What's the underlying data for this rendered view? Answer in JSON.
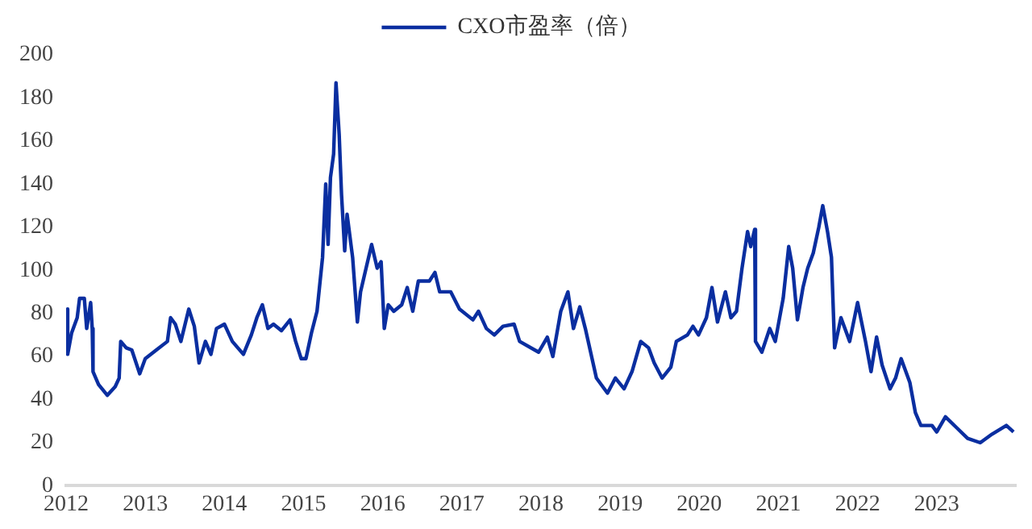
{
  "chart_data": {
    "type": "line",
    "legend": "top",
    "grid": false,
    "marker": "none",
    "line_style": "solid",
    "xlim": [
      2012,
      2024
    ],
    "xticks": [
      2012,
      2013,
      2014,
      2015,
      2016,
      2017,
      2018,
      2019,
      2020,
      2021,
      2022,
      2023
    ],
    "ylim": [
      0,
      200
    ],
    "yticks": [
      0,
      20,
      40,
      60,
      80,
      100,
      120,
      140,
      160,
      180,
      200
    ],
    "series": [
      {
        "name": "CXO市盈率（倍）",
        "color": "#0a2ea0",
        "x": [
          2012.0,
          2012.02,
          2012.07,
          2012.14,
          2012.17,
          2012.23,
          2012.26,
          2012.31,
          2012.33,
          2012.34,
          2012.41,
          2012.52,
          2012.62,
          2012.67,
          2012.69,
          2012.76,
          2012.83,
          2012.93,
          2013.0,
          2013.14,
          2013.28,
          2013.32,
          2013.38,
          2013.45,
          2013.55,
          2013.62,
          2013.68,
          2013.76,
          2013.83,
          2013.9,
          2014.0,
          2014.1,
          2014.24,
          2014.34,
          2014.41,
          2014.48,
          2014.55,
          2014.62,
          2014.72,
          2014.83,
          2014.9,
          2014.97,
          2015.03,
          2015.1,
          2015.17,
          2015.24,
          2015.28,
          2015.31,
          2015.34,
          2015.38,
          2015.41,
          2015.45,
          2015.48,
          2015.52,
          2015.55,
          2015.62,
          2015.68,
          2015.72,
          2015.79,
          2015.86,
          2015.93,
          2015.98,
          2016.02,
          2016.07,
          2016.14,
          2016.24,
          2016.31,
          2016.38,
          2016.45,
          2016.59,
          2016.66,
          2016.72,
          2016.86,
          2016.97,
          2017.14,
          2017.21,
          2017.31,
          2017.41,
          2017.52,
          2017.66,
          2017.73,
          2017.97,
          2018.08,
          2018.15,
          2018.25,
          2018.34,
          2018.41,
          2018.49,
          2018.56,
          2018.7,
          2018.84,
          2018.94,
          2019.05,
          2019.15,
          2019.26,
          2019.36,
          2019.43,
          2019.53,
          2019.64,
          2019.71,
          2019.85,
          2019.92,
          2019.99,
          2020.09,
          2020.16,
          2020.23,
          2020.33,
          2020.4,
          2020.47,
          2020.54,
          2020.61,
          2020.65,
          2020.7,
          2020.71,
          2020.79,
          2020.89,
          2020.96,
          2021.06,
          2021.13,
          2021.18,
          2021.24,
          2021.31,
          2021.37,
          2021.44,
          2021.51,
          2021.56,
          2021.62,
          2021.67,
          2021.71,
          2021.79,
          2021.9,
          2022.0,
          2022.1,
          2022.17,
          2022.24,
          2022.31,
          2022.41,
          2022.48,
          2022.55,
          2022.66,
          2022.73,
          2022.8,
          2022.94,
          2023.0,
          2023.11,
          2023.25,
          2023.39,
          2023.55,
          2023.7,
          2023.88,
          2023.97
        ],
        "values": [
          82,
          61,
          71,
          78,
          87,
          87,
          73,
          85,
          73,
          53,
          47,
          42,
          46,
          50,
          67,
          64,
          63,
          52,
          59,
          63,
          67,
          78,
          75,
          67,
          82,
          74,
          57,
          67,
          61,
          73,
          75,
          67,
          61,
          70,
          78,
          84,
          73,
          75,
          72,
          77,
          67,
          59,
          59,
          71,
          81,
          106,
          140,
          112,
          143,
          154,
          187,
          163,
          135,
          109,
          126,
          106,
          76,
          90,
          101,
          112,
          101,
          104,
          73,
          84,
          81,
          84,
          92,
          81,
          95,
          95,
          99,
          90,
          90,
          82,
          77,
          81,
          73,
          70,
          74,
          75,
          67,
          62,
          69,
          60,
          81,
          90,
          73,
          83,
          73,
          50,
          43,
          50,
          45,
          53,
          67,
          64,
          57,
          50,
          55,
          67,
          70,
          74,
          70,
          78,
          92,
          76,
          90,
          78,
          81,
          101,
          118,
          111,
          119,
          67,
          62,
          73,
          67,
          87,
          111,
          101,
          77,
          92,
          101,
          108,
          120,
          130,
          118,
          106,
          64,
          78,
          67,
          85,
          67,
          53,
          69,
          56,
          45,
          50,
          59,
          48,
          34,
          28,
          28,
          25,
          32,
          27,
          22,
          20,
          24,
          28,
          25
        ]
      }
    ]
  }
}
